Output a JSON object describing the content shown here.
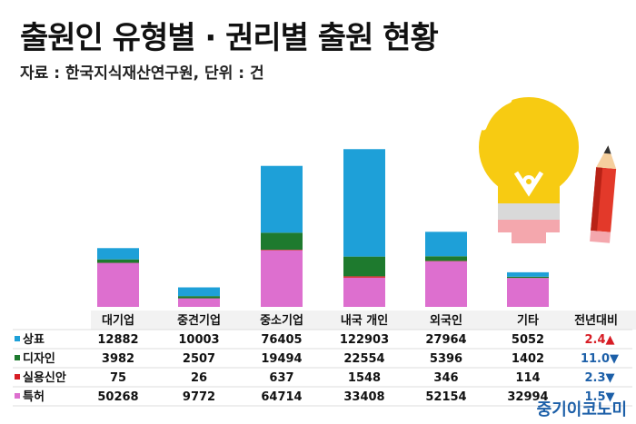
{
  "title": "출원인 유형별 · 권리별 출원 현황",
  "source": "자료 : 한국지식재산연구원, 단위 : 건",
  "footer": "중기이코노미",
  "colors": {
    "상표": "#1ea0d8",
    "디자인": "#1e7a2e",
    "실용신안": "#d71c24",
    "특허": "#dd6fcf",
    "up": "#d71c24",
    "down": "#1c5fa8"
  },
  "chart_data": {
    "type": "bar",
    "stacked": true,
    "categories": [
      "대기업",
      "중견기업",
      "중소기업",
      "내국 개인",
      "외국인",
      "기타"
    ],
    "series": [
      {
        "name": "상표",
        "values": [
          12882,
          10003,
          76405,
          122903,
          27964,
          5052
        ]
      },
      {
        "name": "디자인",
        "values": [
          3982,
          2507,
          19494,
          22554,
          5396,
          1402
        ]
      },
      {
        "name": "실용신안",
        "values": [
          75,
          26,
          637,
          1548,
          346,
          114
        ]
      },
      {
        "name": "특허",
        "values": [
          50268,
          9772,
          64714,
          33408,
          52154,
          32994
        ]
      }
    ],
    "change_header": "전년대비",
    "changes": [
      {
        "value": "2.4",
        "arrow": "▲",
        "direction": "up"
      },
      {
        "value": "11.0",
        "arrow": "▼",
        "direction": "down"
      },
      {
        "value": "2.3",
        "arrow": "▼",
        "direction": "down"
      },
      {
        "value": "1.5",
        "arrow": "▼",
        "direction": "down"
      }
    ]
  }
}
